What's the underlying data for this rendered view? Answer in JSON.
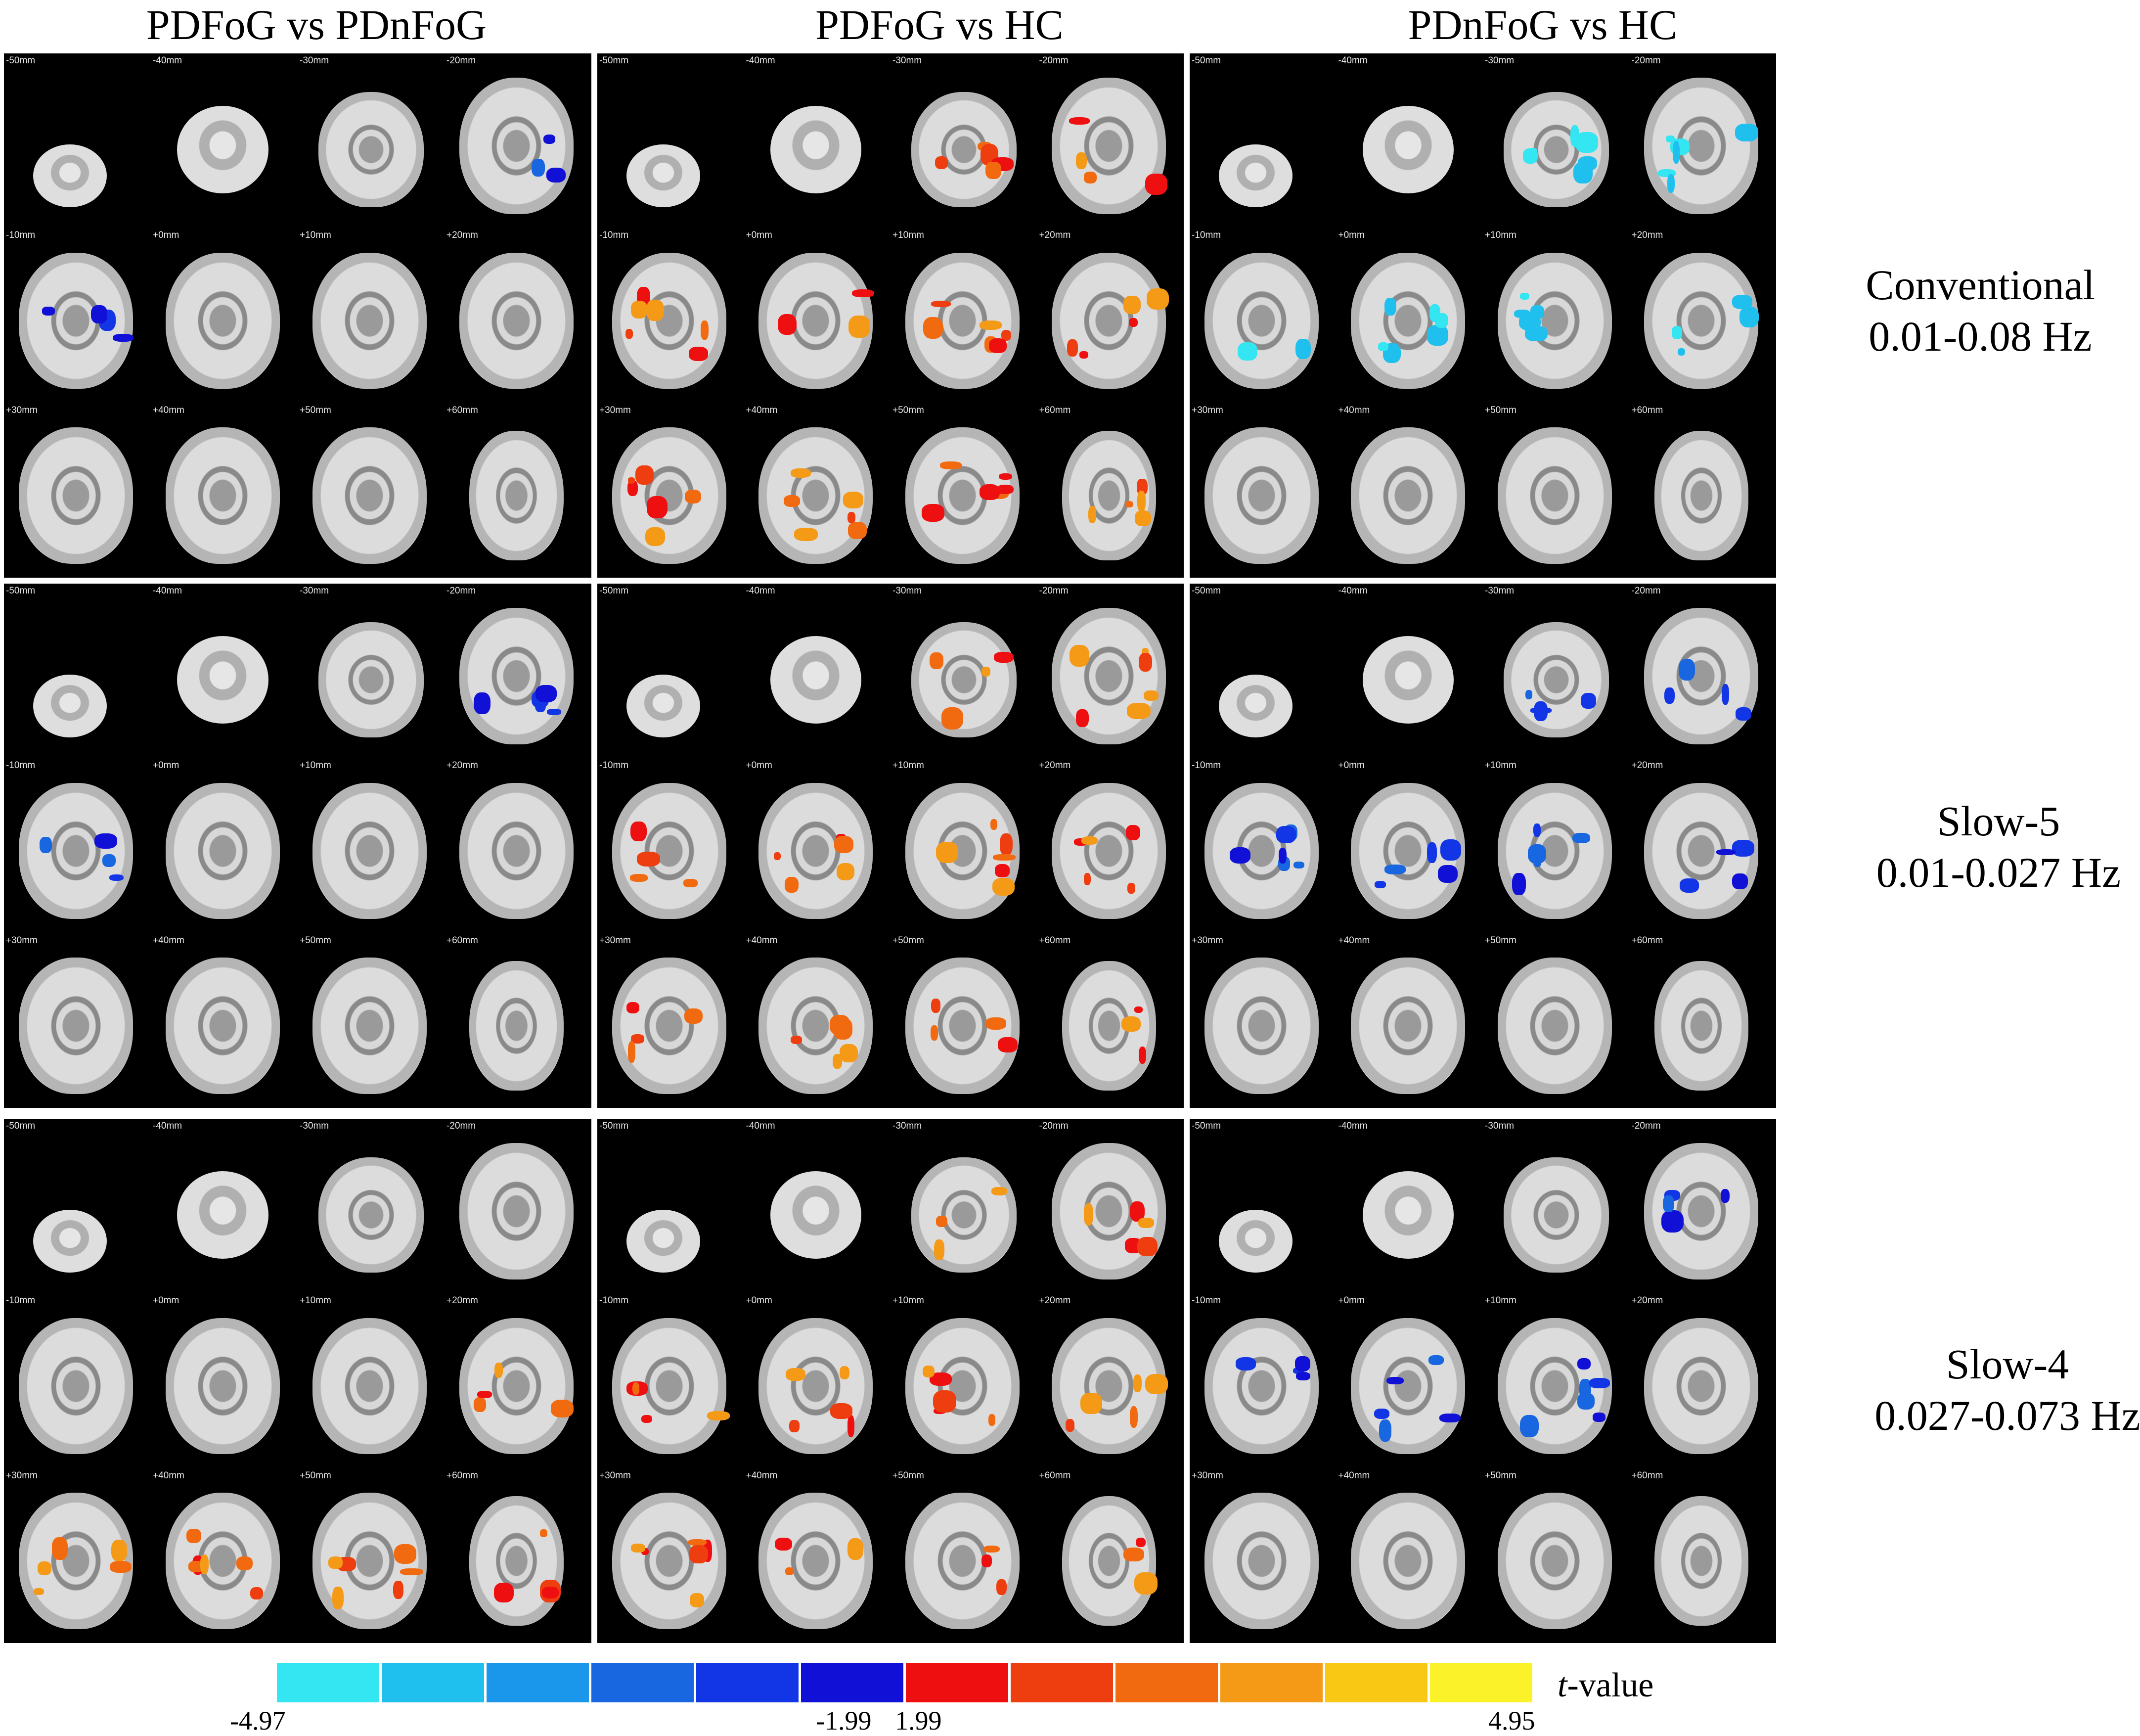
{
  "column_titles": [
    "PDFoG vs PDnFoG",
    "PDFoG vs HC",
    "PDnFoG vs HC"
  ],
  "row_labels": [
    {
      "name": "Conventional",
      "range": "0.01-0.08 Hz"
    },
    {
      "name": "Slow-5",
      "range": "0.01-0.027 Hz"
    },
    {
      "name": "Slow-4",
      "range": "0.027-0.073 Hz"
    }
  ],
  "slice_labels": [
    "-50mm",
    "-40mm",
    "-30mm",
    "-20mm",
    "-10mm",
    "+0mm",
    "+10mm",
    "+20mm",
    "+30mm",
    "+40mm",
    "+50mm",
    "+60mm"
  ],
  "colorbar": {
    "title_italic": "t",
    "title_rest": "-value",
    "ticks": [
      "-4.97",
      "-1.99",
      "1.99",
      "4.95"
    ],
    "negative_colors": [
      "#33e6f2",
      "#1fbfee",
      "#1a97ea",
      "#1866e0",
      "#1236e6",
      "#1010d6"
    ],
    "positive_colors": [
      "#ee1010",
      "#ee3e10",
      "#f26a10",
      "#f49a16",
      "#f8c814",
      "#fbf22a"
    ]
  }
}
